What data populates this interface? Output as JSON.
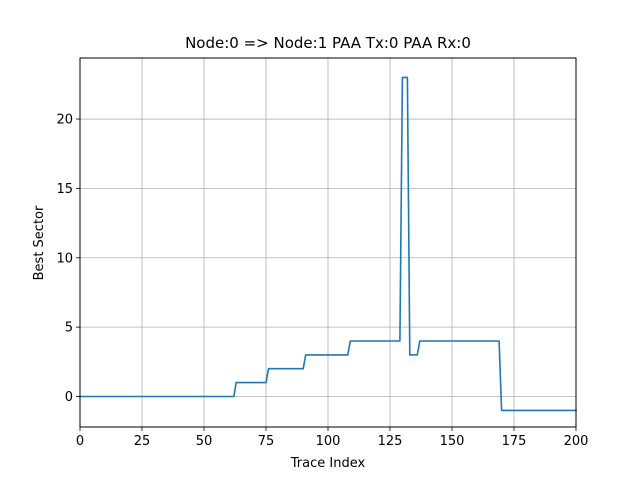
{
  "chart_data": {
    "type": "line",
    "title": "Node:0 => Node:1 PAA Tx:0 PAA Rx:0",
    "xlabel": "Trace Index",
    "ylabel": "Best Sector",
    "xlim": [
      0,
      200
    ],
    "ylim": [
      -2.2,
      24.4
    ],
    "xticks": [
      0,
      25,
      50,
      75,
      100,
      125,
      150,
      175,
      200
    ],
    "yticks": [
      0,
      5,
      10,
      15,
      20
    ],
    "grid": true,
    "line_color": "#1f77b4",
    "series": [
      {
        "x": [
          0,
          62,
          63,
          75,
          76,
          90,
          91,
          108,
          109,
          129,
          130,
          132,
          133,
          136,
          137,
          169,
          170,
          200
        ],
        "y": [
          0,
          0,
          1,
          1,
          2,
          2,
          3,
          3,
          4,
          4,
          23,
          23,
          3,
          3,
          4,
          4,
          -1,
          -1
        ]
      }
    ]
  }
}
